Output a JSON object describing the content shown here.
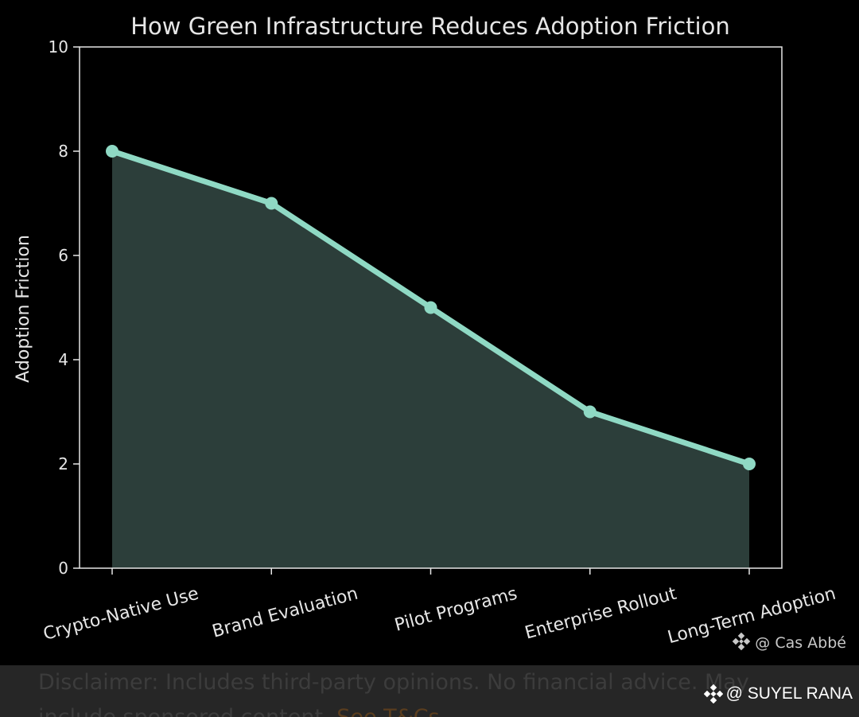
{
  "chart_data": {
    "type": "area",
    "title": "How Green Infrastructure Reduces Adoption Friction",
    "xlabel": "",
    "ylabel": "Adoption Friction",
    "categories": [
      "Crypto-Native Use",
      "Brand Evaluation",
      "Pilot Programs",
      "Enterprise Rollout",
      "Long-Term Adoption"
    ],
    "values": [
      8,
      7,
      5,
      3,
      2
    ],
    "ylim": [
      0,
      10
    ],
    "yticks": [
      0,
      2,
      4,
      6,
      8,
      10
    ],
    "grid": false,
    "colors": {
      "background": "#000000",
      "line": "#8fd9c4",
      "fill": "#2c3e3a",
      "axis": "#e6e6e6",
      "text": "#e6e6e6"
    }
  },
  "watermark": "@ Cas Abbé",
  "footer": {
    "disclaimer": "Disclaimer: Includes third-party opinions. No financial advice. May include sponsored content.",
    "link": "See T&Cs",
    "author": "@ SUYEL RANA",
    "author_icon": "binance-diamond-icon"
  }
}
